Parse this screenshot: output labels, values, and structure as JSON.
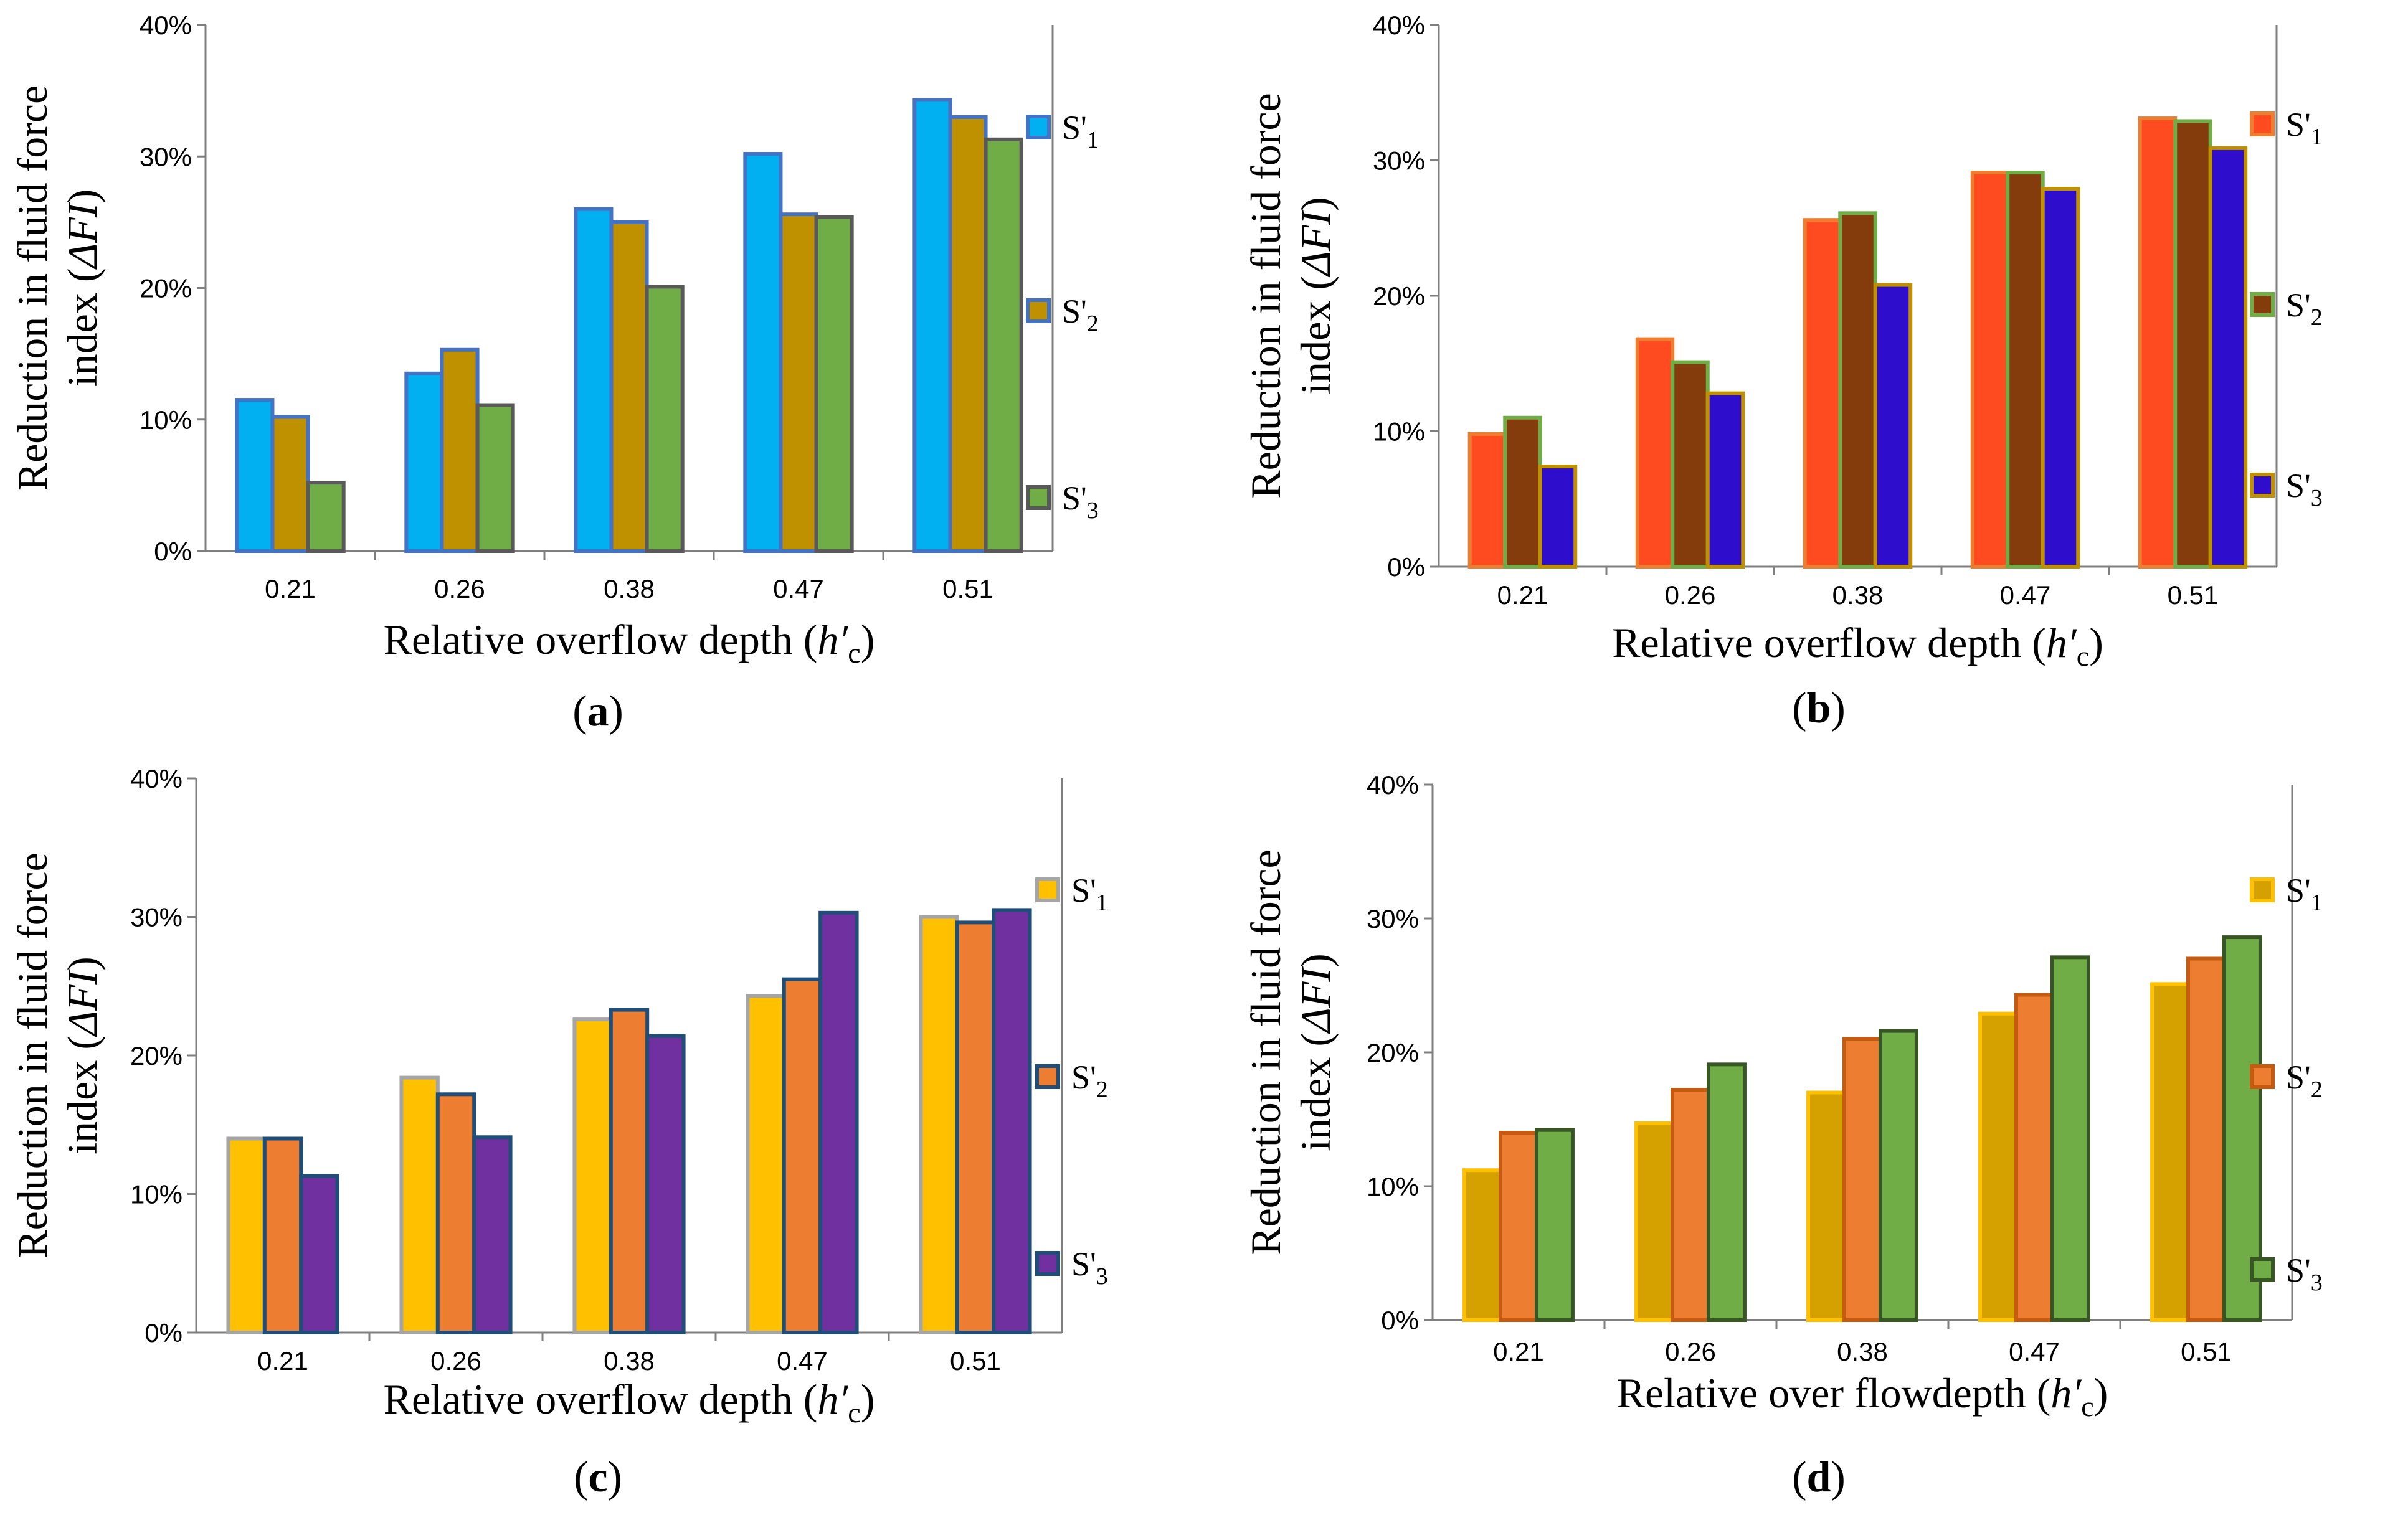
{
  "chart_data": [
    {
      "type": "bar",
      "panel": "a",
      "caption": "(a)",
      "categories": [
        "0.21",
        "0.26",
        "0.38",
        "0.47",
        "0.51"
      ],
      "series": [
        {
          "name": "S'1",
          "values": [
            11.5,
            13.5,
            26.0,
            30.2,
            34.3
          ],
          "fill": "#00B0F0",
          "stroke": "#4472C4"
        },
        {
          "name": "S'2",
          "values": [
            10.2,
            15.3,
            25.0,
            25.6,
            33.0
          ],
          "fill": "#BF9000",
          "stroke": "#4472C4"
        },
        {
          "name": "S'3",
          "values": [
            5.2,
            11.1,
            20.1,
            25.4,
            31.3
          ],
          "fill": "#70AD47",
          "stroke": "#595959"
        }
      ],
      "yticks": [
        "0%",
        "10%",
        "20%",
        "30%",
        "40%"
      ],
      "ylim": [
        0,
        40
      ],
      "ylabel_line1": "Reduction in fluid force",
      "ylabel_line2_prefix": "index (",
      "ylabel_symbol": "ΔFI",
      "ylabel_line2_suffix": ")",
      "xlabel_prefix": "Relative overflow depth (",
      "xlabel_symbol": "h′",
      "xlabel_sub": "c",
      "xlabel_suffix": ")",
      "legend_position": "right"
    },
    {
      "type": "bar",
      "panel": "b",
      "caption": "(b)",
      "categories": [
        "0.21",
        "0.26",
        "0.38",
        "0.47",
        "0.51"
      ],
      "series": [
        {
          "name": "S'1",
          "values": [
            9.8,
            16.8,
            25.6,
            29.1,
            33.1
          ],
          "fill": "#FF4B1F",
          "stroke": "#ED7D31"
        },
        {
          "name": "S'2",
          "values": [
            11.0,
            15.1,
            26.1,
            29.1,
            32.9
          ],
          "fill": "#843C0C",
          "stroke": "#70AD47"
        },
        {
          "name": "S'3",
          "values": [
            7.4,
            12.8,
            20.8,
            27.9,
            30.9
          ],
          "fill": "#2E0DCC",
          "stroke": "#BF9000"
        }
      ],
      "yticks": [
        "0%",
        "10%",
        "20%",
        "30%",
        "40%"
      ],
      "ylim": [
        0,
        40
      ],
      "ylabel_line1": "Reduction in fluid force",
      "ylabel_line2_prefix": "index (",
      "ylabel_symbol": "ΔFI",
      "ylabel_line2_suffix": ")",
      "xlabel_prefix": "Relative overflow depth (",
      "xlabel_symbol": "h′",
      "xlabel_sub": "c",
      "xlabel_suffix": ")",
      "legend_position": "right"
    },
    {
      "type": "bar",
      "panel": "c",
      "caption": "(c)",
      "categories": [
        "0.21",
        "0.26",
        "0.38",
        "0.47",
        "0.51"
      ],
      "series": [
        {
          "name": "S'1",
          "values": [
            14.0,
            18.4,
            22.6,
            24.3,
            30.0
          ],
          "fill": "#FFC000",
          "stroke": "#A5A5A5"
        },
        {
          "name": "S'2",
          "values": [
            14.0,
            17.2,
            23.3,
            25.5,
            29.6
          ],
          "fill": "#ED7D31",
          "stroke": "#1F4E79"
        },
        {
          "name": "S'3",
          "values": [
            11.3,
            14.1,
            21.4,
            30.3,
            30.5
          ],
          "fill": "#7030A0",
          "stroke": "#1F4E79"
        }
      ],
      "yticks": [
        "0%",
        "10%",
        "20%",
        "30%",
        "40%"
      ],
      "ylim": [
        0,
        40
      ],
      "ylabel_line1": "Reduction in fluid force",
      "ylabel_line2_prefix": "index (",
      "ylabel_symbol": "ΔFI",
      "ylabel_line2_suffix": ")",
      "xlabel_prefix": "Relative overflow depth (",
      "xlabel_symbol": "h′",
      "xlabel_sub": "c",
      "xlabel_suffix": ")",
      "legend_position": "right"
    },
    {
      "type": "bar",
      "panel": "d",
      "caption": "(d)",
      "categories": [
        "0.21",
        "0.26",
        "0.38",
        "0.47",
        "0.51"
      ],
      "series": [
        {
          "name": "S'1",
          "values": [
            11.2,
            14.7,
            17.0,
            22.9,
            25.1
          ],
          "fill": "#D4A100",
          "stroke": "#FFC000"
        },
        {
          "name": "S'2",
          "values": [
            14.0,
            17.2,
            21.0,
            24.3,
            27.0
          ],
          "fill": "#ED7D31",
          "stroke": "#C55A11"
        },
        {
          "name": "S'3",
          "values": [
            14.2,
            19.1,
            21.6,
            27.1,
            28.6
          ],
          "fill": "#70AD47",
          "stroke": "#375623"
        }
      ],
      "yticks": [
        "0%",
        "10%",
        "20%",
        "30%",
        "40%"
      ],
      "ylim": [
        0,
        40
      ],
      "ylabel_line1": "Reduction in fluid force",
      "ylabel_line2_prefix": "index (",
      "ylabel_symbol": "ΔFI",
      "ylabel_line2_suffix": ")",
      "xlabel_prefix": "Relative over flowdepth (",
      "xlabel_symbol": "h′",
      "xlabel_sub": "c",
      "xlabel_suffix": ")",
      "legend_position": "right"
    }
  ]
}
